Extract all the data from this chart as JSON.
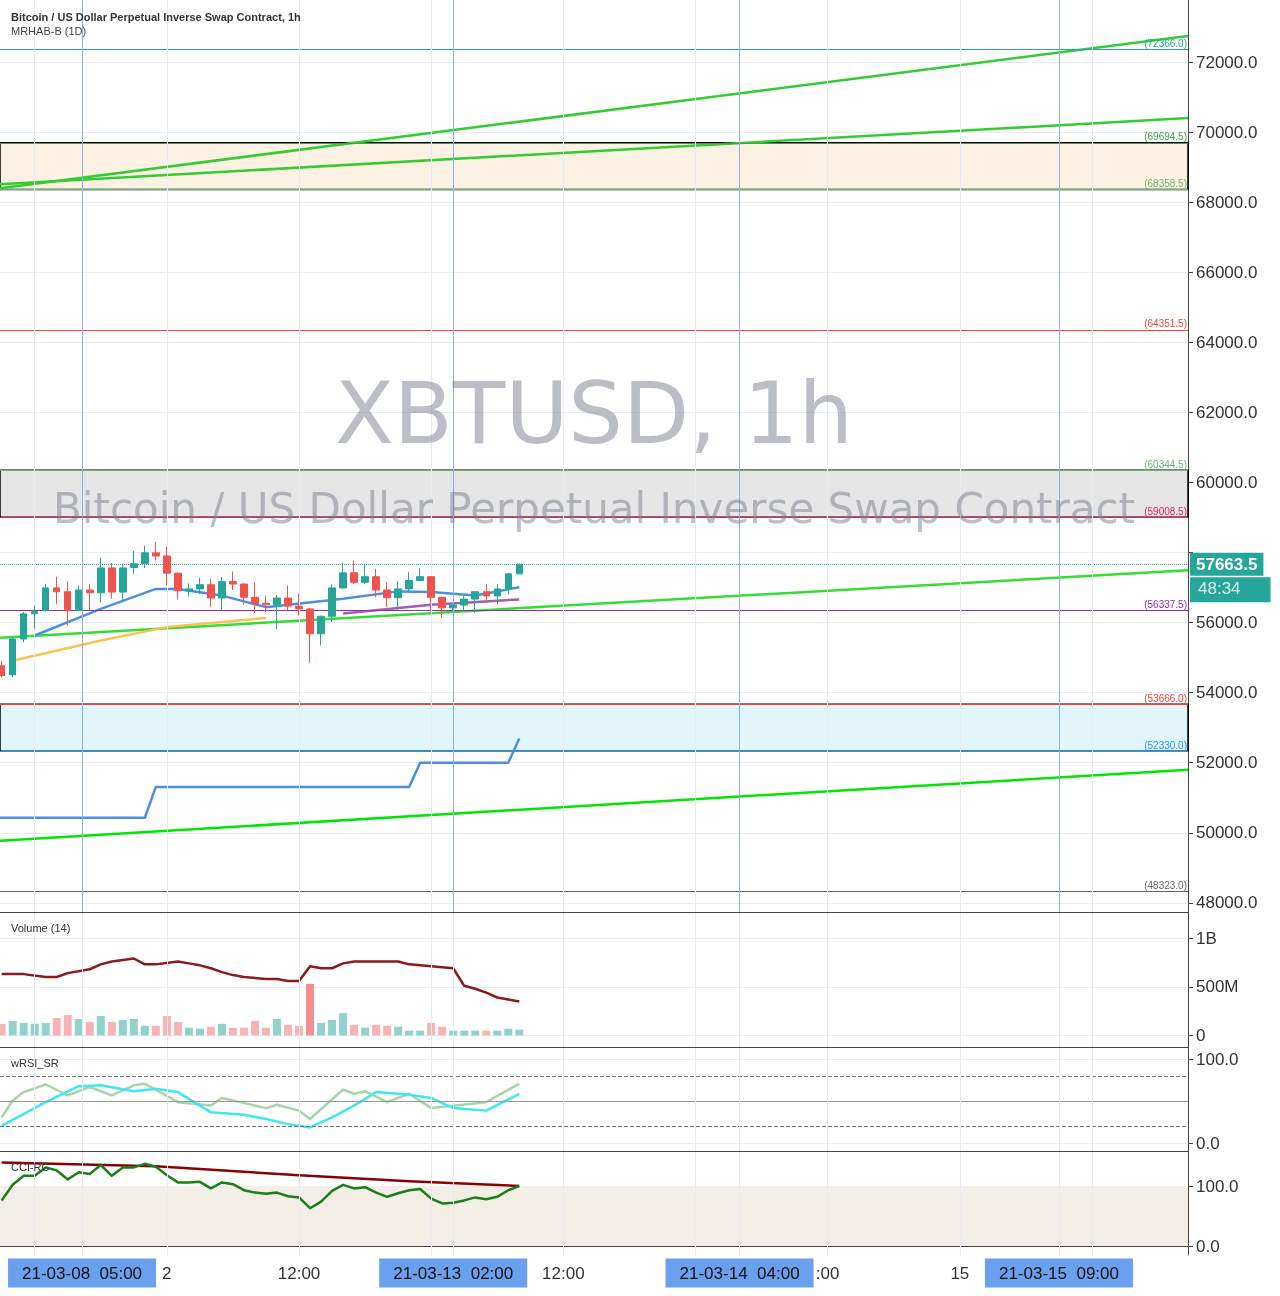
{
  "chart_data": [
    {
      "type": "candlestick",
      "title": "Bitcoin / US Dollar Perpetual Inverse Swap Contract, 1h",
      "subtitle": "MRHAB-B (1D)",
      "annotations": [
        "XBTUSD, 1h",
        "Bitcoin / US Dollar Perpetual Inverse Swap Contract",
        "48:34"
      ],
      "xlim": [
        "--03-11T08:51",
        "--03-15T20:43"
      ],
      "xticks": [
        {
          "value": "--03-11T12:00",
          "label": null
        },
        {
          "value": "--03-11T16:18",
          "label": "21-03-08  05:00"
        },
        {
          "value": "--03-12T00:00",
          "label": "2"
        },
        {
          "value": "--03-12T12:00",
          "label": "12:00"
        },
        {
          "value": "--03-13T00:00",
          "label": null
        },
        {
          "value": "--03-13T02:00",
          "label": "21-03-13  02:00"
        },
        {
          "value": "--03-13T12:00",
          "label": "12:00"
        },
        {
          "value": "--03-14T00:00",
          "label": null
        },
        {
          "value": "--03-14T04:00",
          "label": "21-03-14  04:00"
        },
        {
          "value": "--03-14T12:00",
          "label": ":00"
        },
        {
          "value": "--03-15T00:00",
          "label": "15"
        },
        {
          "value": "--03-15T09:00",
          "label": "21-03-15  09:00"
        },
        {
          "value": "--03-15T12:00",
          "label": null
        }
      ],
      "ylim": [
        47710,
        73770
      ],
      "yticks": [
        {
          "value": 48000,
          "label": "48000.0"
        },
        {
          "value": 50000,
          "label": "50000.0"
        },
        {
          "value": 52000,
          "label": "52000.0"
        },
        {
          "value": 54000,
          "label": "54000.0"
        },
        {
          "value": 56000,
          "label": "56000.0"
        },
        {
          "value": 58000,
          "label": null
        },
        {
          "value": 60000,
          "label": "60000.0"
        },
        {
          "value": 62000,
          "label": "62000.0"
        },
        {
          "value": 64000,
          "label": "64000.0"
        },
        {
          "value": 66000,
          "label": "66000.0"
        },
        {
          "value": 68000,
          "label": "68000.0"
        },
        {
          "value": 70000,
          "label": "70000.0"
        },
        {
          "value": 72000,
          "label": "72000.0"
        }
      ],
      "tick_labels": "y",
      "grid": true,
      "bands": [
        {
          "axis": "y",
          "from": 68358.5,
          "to": 69694.5,
          "color": "#fdf1e4"
        },
        {
          "axis": "y",
          "from": 59008.5,
          "to": 60344.5,
          "color": "#e6e6e6"
        },
        {
          "axis": "y",
          "from": 52330,
          "to": 53666,
          "color": "#e0f6fa"
        }
      ],
      "ref_lines": [
        {
          "axis": "y",
          "value": 72366,
          "label": "(72366.0)",
          "color": "#26a69a"
        },
        {
          "axis": "y",
          "value": 69694.5,
          "label": "(69694.5)",
          "color": "#43a047"
        },
        {
          "axis": "y",
          "value": 68358.5,
          "label": "(68358.5)",
          "color": "#66bb6a"
        },
        {
          "axis": "y",
          "value": 64351.5,
          "label": "(64351.5)",
          "color": "#f44336"
        },
        {
          "axis": "y",
          "value": 60344.5,
          "label": "(60344.5)",
          "color": "#66bb6a"
        },
        {
          "axis": "y",
          "value": 59008.5,
          "label": "(59008.5)",
          "color": "#e91e63"
        },
        {
          "axis": "y",
          "value": 56337.5,
          "label": "(56337.5)",
          "color": "#9c27b0"
        },
        {
          "axis": "y",
          "value": 53666,
          "label": "(53666.0)",
          "color": "#f44336"
        },
        {
          "axis": "y",
          "value": 52330,
          "label": "(52330.0)",
          "color": "#2196f3"
        },
        {
          "axis": "y",
          "value": 48323,
          "label": "(48323.0)",
          "color": "#666666"
        },
        {
          "axis": "y",
          "value": 57663.5,
          "label": "57663.5",
          "color": "#26a69a",
          "line_style": "dotted"
        }
      ],
      "series": [
        {
          "type": "line",
          "color": "#33cc33",
          "x": [
            "--03-11T08:51",
            "--03-15T20:43"
          ],
          "values": [
            68400,
            72740
          ]
        },
        {
          "type": "line",
          "color": "#33cc33",
          "x": [
            "--03-11T08:51",
            "--03-15T20:43"
          ],
          "values": [
            68510,
            70400
          ]
        },
        {
          "type": "line",
          "color": "#33dd33",
          "x": [
            "--03-11T08:51",
            "--03-15T20:43"
          ],
          "values": [
            55570,
            57490
          ]
        },
        {
          "type": "line",
          "color": "#00e600",
          "x": [
            "--03-11T08:51",
            "--03-15T20:43"
          ],
          "values": [
            49770,
            51800
          ]
        },
        {
          "type": "line",
          "color": "#4a90e2",
          "x": [
            "--03-11T08:51",
            "--03-11T22:00",
            "--03-11T23:00",
            "--03-12T22:00",
            "--03-12T23:00",
            "--03-13T07:00",
            "--03-13T08:00"
          ],
          "values": [
            50430,
            50430,
            51310,
            51310,
            52000,
            52000,
            52690
          ]
        },
        {
          "type": "line",
          "color": "#f5c451",
          "x": [
            "--03-11T10:00",
            "--03-11T18:00",
            "--03-12T00:00",
            "--03-12T09:00"
          ],
          "values": [
            54910,
            55490,
            55870,
            56130
          ]
        },
        {
          "type": "line",
          "color": "#4a90e2",
          "x": [
            "--03-11T12:00",
            "--03-11T18:00",
            "--03-11T23:00",
            "--03-12T01:00",
            "--03-12T05:00",
            "--03-12T09:00",
            "--03-12T16:00",
            "--03-12T21:00",
            "--03-13T00:00",
            "--03-13T04:00",
            "--03-13T08:00"
          ],
          "values": [
            55630,
            56390,
            56960,
            56960,
            56770,
            56440,
            56680,
            56890,
            56870,
            56770,
            57010
          ]
        },
        {
          "type": "line",
          "color": "#a05fb0",
          "x": [
            "--03-12T16:00",
            "--03-13T00:00",
            "--03-13T08:00"
          ],
          "values": [
            56260,
            56510,
            56660
          ]
        },
        {
          "x": [
            "--03-11T09:00",
            "--03-11T10:00",
            "--03-11T11:00",
            "--03-11T12:00",
            "--03-11T13:00",
            "--03-11T14:00",
            "--03-11T15:00",
            "--03-11T16:00",
            "--03-11T17:00",
            "--03-11T18:00",
            "--03-11T19:00",
            "--03-11T20:00",
            "--03-11T21:00",
            "--03-11T22:00",
            "--03-11T23:00",
            "--03-12T00:00",
            "--03-12T01:00",
            "--03-12T02:00",
            "--03-12T03:00",
            "--03-12T04:00",
            "--03-12T05:00",
            "--03-12T06:00",
            "--03-12T07:00",
            "--03-12T08:00",
            "--03-12T09:00",
            "--03-12T10:00",
            "--03-12T11:00",
            "--03-12T12:00",
            "--03-12T13:00",
            "--03-12T14:00",
            "--03-12T15:00",
            "--03-12T16:00",
            "--03-12T17:00",
            "--03-12T18:00",
            "--03-12T19:00",
            "--03-12T20:00",
            "--03-12T21:00",
            "--03-12T22:00",
            "--03-12T23:00",
            "--03-13T00:00",
            "--03-13T01:00",
            "--03-13T02:00",
            "--03-13T03:00",
            "--03-13T04:00",
            "--03-13T05:00",
            "--03-13T06:00",
            "--03-13T07:00",
            "--03-13T08:00"
          ],
          "ohlc": [
            [
              54770,
              54910,
              54440,
              54490
            ],
            [
              54510,
              55580,
              54440,
              55530
            ],
            [
              55530,
              56300,
              55440,
              56250
            ],
            [
              56250,
              56490,
              55820,
              56310
            ],
            [
              56340,
              57100,
              56320,
              56990
            ],
            [
              56990,
              57310,
              56530,
              56880
            ],
            [
              56880,
              57170,
              55910,
              56340
            ],
            [
              56340,
              57060,
              56340,
              56930
            ],
            [
              56930,
              57100,
              56340,
              56850
            ],
            [
              56850,
              57850,
              56580,
              57560
            ],
            [
              57560,
              57700,
              56680,
              56870
            ],
            [
              56870,
              57680,
              56630,
              57560
            ],
            [
              57570,
              58040,
              57390,
              57680
            ],
            [
              57680,
              58200,
              57560,
              57990
            ],
            [
              57990,
              58300,
              57770,
              57900
            ],
            [
              57900,
              58170,
              57060,
              57410
            ],
            [
              57410,
              57440,
              56660,
              56910
            ],
            [
              56900,
              57120,
              56740,
              56960
            ],
            [
              56960,
              57280,
              56820,
              57080
            ],
            [
              57080,
              57250,
              56440,
              56700
            ],
            [
              56700,
              57300,
              56340,
              57170
            ],
            [
              57170,
              57460,
              56930,
              57100
            ],
            [
              57100,
              57130,
              56510,
              56720
            ],
            [
              56720,
              57150,
              56270,
              56530
            ],
            [
              56550,
              56770,
              56300,
              56510
            ],
            [
              56510,
              56790,
              55820,
              56700
            ],
            [
              56700,
              57060,
              56340,
              56470
            ],
            [
              56470,
              56820,
              56200,
              56390
            ],
            [
              56390,
              56420,
              54840,
              55680
            ],
            [
              55680,
              56200,
              55340,
              56180
            ],
            [
              56180,
              57090,
              56010,
              56990
            ],
            [
              56990,
              57710,
              56960,
              57420
            ],
            [
              57420,
              57770,
              57100,
              57150
            ],
            [
              57150,
              57680,
              57100,
              57310
            ],
            [
              57310,
              57530,
              56720,
              56930
            ],
            [
              56930,
              57150,
              56440,
              56710
            ],
            [
              56710,
              57180,
              56340,
              56960
            ],
            [
              56960,
              57440,
              56870,
              57200
            ],
            [
              57200,
              57550,
              57180,
              57310
            ],
            [
              57310,
              57320,
              56340,
              56720
            ],
            [
              56720,
              56740,
              56130,
              56420
            ],
            [
              56420,
              56510,
              56340,
              56500
            ],
            [
              56500,
              56750,
              56340,
              56670
            ],
            [
              56670,
              56900,
              56280,
              56880
            ],
            [
              56880,
              57100,
              56650,
              56760
            ],
            [
              56760,
              57100,
              56530,
              56960
            ],
            [
              56960,
              57420,
              56800,
              57390
            ],
            [
              57390,
              57680,
              57390,
              57663.5
            ]
          ],
          "colors": [
            "#ef5350",
            "#26a69a",
            "#26a69a",
            "#26a69a",
            "#26a69a",
            "#ef5350",
            "#ef5350",
            "#26a69a",
            "#ef5350",
            "#26a69a",
            "#ef5350",
            "#26a69a",
            "#26a69a",
            "#26a69a",
            "#ef5350",
            "#ef5350",
            "#ef5350",
            "#26a69a",
            "#26a69a",
            "#ef5350",
            "#26a69a",
            "#ef5350",
            "#ef5350",
            "#ef5350",
            "#ef5350",
            "#26a69a",
            "#ef5350",
            "#ef5350",
            "#ef5350",
            "#26a69a",
            "#26a69a",
            "#26a69a",
            "#ef5350",
            "#26a69a",
            "#ef5350",
            "#ef5350",
            "#26a69a",
            "#26a69a",
            "#26a69a",
            "#ef5350",
            "#ef5350",
            "#26a69a",
            "#26a69a",
            "#26a69a",
            "#ef5350",
            "#26a69a",
            "#26a69a",
            "#26a69a"
          ]
        }
      ]
    },
    {
      "type": "bar",
      "title": "Volume (14)",
      "xlim": [
        "--03-11T08:51",
        "--03-15T20:43"
      ],
      "xticks": [
        {
          "value": "--03-11T12:00",
          "label": null
        },
        {
          "value": "--03-11T16:18",
          "label": "21-03-08  05:00"
        },
        {
          "value": "--03-12T00:00",
          "label": "2"
        },
        {
          "value": "--03-12T12:00",
          "label": "12:00"
        },
        {
          "value": "--03-13T00:00",
          "label": null
        },
        {
          "value": "--03-13T02:00",
          "label": "21-03-13  02:00"
        },
        {
          "value": "--03-13T12:00",
          "label": "12:00"
        },
        {
          "value": "--03-14T00:00",
          "label": null
        },
        {
          "value": "--03-14T04:00",
          "label": "21-03-14  04:00"
        },
        {
          "value": "--03-14T12:00",
          "label": ":00"
        },
        {
          "value": "--03-15T00:00",
          "label": "15"
        },
        {
          "value": "--03-15T09:00",
          "label": "21-03-15  09:00"
        },
        {
          "value": "--03-15T12:00",
          "label": null
        }
      ],
      "ylim": [
        -128000000,
        1257000000
      ],
      "yticks": [
        0,
        {
          "value": 500000000,
          "label": "500M"
        },
        {
          "value": 1000000000,
          "label": "1B"
        }
      ],
      "tick_labels": "y",
      "grid": true,
      "x": [
        "--03-11T09:00",
        "--03-11T10:00",
        "--03-11T11:00",
        "--03-11T12:00",
        "--03-11T13:00",
        "--03-11T14:00",
        "--03-11T15:00",
        "--03-11T16:00",
        "--03-11T17:00",
        "--03-11T18:00",
        "--03-11T19:00",
        "--03-11T20:00",
        "--03-11T21:00",
        "--03-11T22:00",
        "--03-11T23:00",
        "--03-12T00:00",
        "--03-12T01:00",
        "--03-12T02:00",
        "--03-12T03:00",
        "--03-12T04:00",
        "--03-12T05:00",
        "--03-12T06:00",
        "--03-12T07:00",
        "--03-12T08:00",
        "--03-12T09:00",
        "--03-12T10:00",
        "--03-12T11:00",
        "--03-12T12:00",
        "--03-12T13:00",
        "--03-12T14:00",
        "--03-12T15:00",
        "--03-12T16:00",
        "--03-12T17:00",
        "--03-12T18:00",
        "--03-12T19:00",
        "--03-12T20:00",
        "--03-12T21:00",
        "--03-12T22:00",
        "--03-12T23:00",
        "--03-13T00:00",
        "--03-13T01:00",
        "--03-13T02:00",
        "--03-13T03:00",
        "--03-13T04:00",
        "--03-13T05:00",
        "--03-13T06:00",
        "--03-13T07:00",
        "--03-13T08:00"
      ],
      "series": [
        {
          "values": [
            120000000,
            150000000,
            130000000,
            120000000,
            130000000,
            180000000,
            210000000,
            170000000,
            140000000,
            200000000,
            140000000,
            160000000,
            170000000,
            100000000,
            100000000,
            200000000,
            140000000,
            80000000,
            70000000,
            90000000,
            120000000,
            80000000,
            80000000,
            150000000,
            80000000,
            170000000,
            110000000,
            100000000,
            530000000,
            130000000,
            160000000,
            230000000,
            110000000,
            80000000,
            110000000,
            100000000,
            90000000,
            50000000,
            50000000,
            130000000,
            90000000,
            50000000,
            50000000,
            50000000,
            50000000,
            50000000,
            70000000,
            60000000
          ],
          "colors": [
            "#f7b4b4",
            "#92d2cc",
            "#92d2cc",
            "#92d2cc",
            "#92d2cc",
            "#f7b4b4",
            "#f7b4b4",
            "#92d2cc",
            "#f7b4b4",
            "#92d2cc",
            "#f7b4b4",
            "#92d2cc",
            "#92d2cc",
            "#92d2cc",
            "#f7b4b4",
            "#f7b4b4",
            "#f7b4b4",
            "#92d2cc",
            "#92d2cc",
            "#f7b4b4",
            "#92d2cc",
            "#f7b4b4",
            "#f7b4b4",
            "#f7b4b4",
            "#f7b4b4",
            "#92d2cc",
            "#f7b4b4",
            "#f7b4b4",
            "#f48f8f",
            "#92d2cc",
            "#92d2cc",
            "#92d2cc",
            "#f7b4b4",
            "#92d2cc",
            "#f7b4b4",
            "#f7b4b4",
            "#92d2cc",
            "#92d2cc",
            "#92d2cc",
            "#f7b4b4",
            "#f7b4b4",
            "#92d2cc",
            "#92d2cc",
            "#92d2cc",
            "#f7b4b4",
            "#92d2cc",
            "#92d2cc",
            "#92d2cc"
          ]
        },
        {
          "type": "line",
          "color": "#8b1a1a",
          "x": [
            "--03-11T09:00",
            "--03-11T11:00",
            "--03-11T13:00",
            "--03-11T14:00",
            "--03-11T15:00",
            "--03-11T17:00",
            "--03-11T18:00",
            "--03-11T19:00",
            "--03-11T21:00",
            "--03-11T22:00",
            "--03-11T23:00",
            "--03-12T01:00",
            "--03-12T02:00",
            "--03-12T03:00",
            "--03-12T04:00",
            "--03-12T05:00",
            "--03-12T06:00",
            "--03-12T07:00",
            "--03-12T09:00",
            "--03-12T10:00",
            "--03-12T11:00",
            "--03-12T12:00",
            "--03-12T13:00",
            "--03-12T14:00",
            "--03-12T15:00",
            "--03-12T16:00",
            "--03-12T17:00",
            "--03-12T19:00",
            "--03-12T21:00",
            "--03-12T22:00",
            "--03-13T00:00",
            "--03-13T02:00",
            "--03-13T03:00",
            "--03-13T04:00",
            "--03-13T05:00",
            "--03-13T06:00",
            "--03-13T07:00",
            "--03-13T08:00"
          ],
          "values": [
            630000000,
            630000000,
            600000000,
            600000000,
            640000000,
            680000000,
            730000000,
            760000000,
            790000000,
            730000000,
            730000000,
            760000000,
            740000000,
            720000000,
            690000000,
            650000000,
            620000000,
            600000000,
            580000000,
            580000000,
            560000000,
            560000000,
            710000000,
            690000000,
            690000000,
            740000000,
            760000000,
            760000000,
            760000000,
            730000000,
            710000000,
            690000000,
            510000000,
            480000000,
            440000000,
            390000000,
            370000000,
            350000000
          ]
        }
      ]
    },
    {
      "type": "line",
      "title": "wRSI_SR",
      "xlim": [
        "--03-11T08:51",
        "--03-15T20:43"
      ],
      "xticks": [
        {
          "value": "--03-11T12:00",
          "label": null
        },
        {
          "value": "--03-11T16:18",
          "label": "21-03-08  05:00"
        },
        {
          "value": "--03-12T00:00",
          "label": "2"
        },
        {
          "value": "--03-12T12:00",
          "label": "12:00"
        },
        {
          "value": "--03-13T00:00",
          "label": null
        },
        {
          "value": "--03-13T02:00",
          "label": "21-03-13  02:00"
        },
        {
          "value": "--03-13T12:00",
          "label": "12:00"
        },
        {
          "value": "--03-14T00:00",
          "label": null
        },
        {
          "value": "--03-14T04:00",
          "label": "21-03-14  04:00"
        },
        {
          "value": "--03-14T12:00",
          "label": ":00"
        },
        {
          "value": "--03-15T00:00",
          "label": "15"
        },
        {
          "value": "--03-15T09:00",
          "label": "21-03-15  09:00"
        },
        {
          "value": "--03-15T12:00",
          "label": null
        }
      ],
      "ylim": [
        -9.6,
        113.3
      ],
      "yticks": [
        {
          "value": 0,
          "label": "0.0"
        },
        {
          "value": 100,
          "label": "100.0"
        }
      ],
      "tick_labels": "y",
      "grid": true,
      "ref_lines": [
        {
          "axis": "y",
          "value": 80,
          "color": "#777777",
          "line_style": "dashed"
        },
        {
          "axis": "y",
          "value": 50,
          "color": "#999999"
        },
        {
          "axis": "y",
          "value": 20,
          "color": "#777777",
          "line_style": "dashed"
        }
      ],
      "series": [
        {
          "color": "#a5d6a7",
          "x": [
            "--03-11T09:00",
            "--03-11T10:00",
            "--03-11T11:00",
            "--03-11T13:00",
            "--03-11T15:00",
            "--03-11T17:00",
            "--03-11T19:00",
            "--03-11T21:00",
            "--03-11T22:00",
            "--03-12T01:00",
            "--03-12T04:00",
            "--03-12T05:00",
            "--03-12T09:00",
            "--03-12T10:00",
            "--03-12T12:00",
            "--03-12T13:00",
            "--03-12T16:00",
            "--03-12T17:00",
            "--03-12T18:00",
            "--03-12T20:00",
            "--03-12T22:00",
            "--03-13T00:00",
            "--03-13T05:00",
            "--03-13T08:00"
          ],
          "values": [
            31,
            51,
            61,
            70,
            57,
            67,
            57,
            69,
            71,
            49,
            45,
            54,
            42,
            46,
            39,
            29,
            64,
            59,
            62,
            49,
            59,
            42,
            49,
            71
          ]
        },
        {
          "color": "#3fe7ee",
          "x": [
            "--03-11T09:00",
            "--03-11T13:00",
            "--03-11T16:00",
            "--03-11T18:00",
            "--03-11T21:00",
            "--03-11T23:00",
            "--03-12T01:00",
            "--03-12T03:00",
            "--03-12T04:00",
            "--03-12T07:00",
            "--03-12T09:00",
            "--03-12T11:00",
            "--03-12T13:00",
            "--03-12T15:00",
            "--03-12T17:00",
            "--03-12T19:00",
            "--03-12T22:00",
            "--03-13T00:00",
            "--03-13T02:00",
            "--03-13T05:00",
            "--03-13T08:00"
          ],
          "values": [
            21,
            49,
            68,
            69,
            62,
            65,
            61,
            45,
            37,
            34,
            29,
            23,
            19,
            31,
            45,
            61,
            58,
            54,
            42,
            39,
            59
          ]
        }
      ]
    },
    {
      "type": "line",
      "title": "CCI-RC",
      "xlim": [
        "--03-11T08:51",
        "--03-15T20:43"
      ],
      "xticks": [
        {
          "value": "--03-11T12:00",
          "label": null
        },
        {
          "value": "--03-11T16:18",
          "label": "21-03-08  05:00"
        },
        {
          "value": "--03-12T00:00",
          "label": "2"
        },
        {
          "value": "--03-12T12:00",
          "label": "12:00"
        },
        {
          "value": "--03-13T00:00",
          "label": null
        },
        {
          "value": "--03-13T02:00",
          "label": "21-03-13  02:00"
        },
        {
          "value": "--03-13T12:00",
          "label": "12:00"
        },
        {
          "value": "--03-14T00:00",
          "label": null
        },
        {
          "value": "--03-14T04:00",
          "label": "21-03-14  04:00"
        },
        {
          "value": "--03-14T12:00",
          "label": ":00"
        },
        {
          "value": "--03-15T00:00",
          "label": "15"
        },
        {
          "value": "--03-15T09:00",
          "label": "21-03-15  09:00"
        },
        {
          "value": "--03-15T12:00",
          "label": null
        }
      ],
      "ylim": [
        -15,
        156.7
      ],
      "yticks": [
        {
          "value": 0,
          "label": "0.0"
        },
        {
          "value": 100,
          "label": "100.0"
        }
      ],
      "grid": true,
      "bands": [
        {
          "axis": "y",
          "from": 0,
          "to": 100,
          "color": "#f3efe6"
        }
      ],
      "series": [
        {
          "color": "#8b0000",
          "x": [
            "--03-11T09:00",
            "--03-11T23:00",
            "--03-12T12:00",
            "--03-12T22:00",
            "--03-13T08:00"
          ],
          "values": [
            139,
            133,
            118,
            108,
            100
          ]
        },
        {
          "color": "#1a7f1a",
          "x": [
            "--03-11T09:00",
            "--03-11T10:00",
            "--03-11T11:00",
            "--03-11T12:00",
            "--03-11T13:00",
            "--03-11T14:00",
            "--03-11T15:00",
            "--03-11T16:00",
            "--03-11T17:00",
            "--03-11T18:00",
            "--03-11T19:00",
            "--03-11T20:00",
            "--03-11T21:00",
            "--03-11T22:00",
            "--03-11T23:00",
            "--03-12T00:00",
            "--03-12T01:00",
            "--03-12T02:00",
            "--03-12T03:00",
            "--03-12T04:00",
            "--03-12T05:00",
            "--03-12T06:00",
            "--03-12T07:00",
            "--03-12T08:00",
            "--03-12T09:00",
            "--03-12T10:00",
            "--03-12T11:00",
            "--03-12T12:00",
            "--03-12T13:00",
            "--03-12T14:00",
            "--03-12T15:00",
            "--03-12T16:00",
            "--03-12T17:00",
            "--03-12T18:00",
            "--03-12T19:00",
            "--03-12T20:00",
            "--03-12T21:00",
            "--03-12T22:00",
            "--03-12T23:00",
            "--03-13T00:00",
            "--03-13T01:00",
            "--03-13T02:00",
            "--03-13T03:00",
            "--03-13T04:00",
            "--03-13T05:00",
            "--03-13T06:00",
            "--03-13T07:00",
            "--03-13T08:00"
          ],
          "values": [
            76,
            102,
            117,
            117,
            131,
            126,
            111,
            123,
            120,
            135,
            117,
            131,
            131,
            137,
            132,
            118,
            106,
            106,
            107,
            96,
            106,
            103,
            93,
            89,
            87,
            89,
            83,
            81,
            63,
            74,
            92,
            102,
            96,
            98,
            89,
            82,
            88,
            93,
            95,
            79,
            71,
            72,
            76,
            81,
            78,
            82,
            93,
            100
          ]
        }
      ]
    }
  ]
}
